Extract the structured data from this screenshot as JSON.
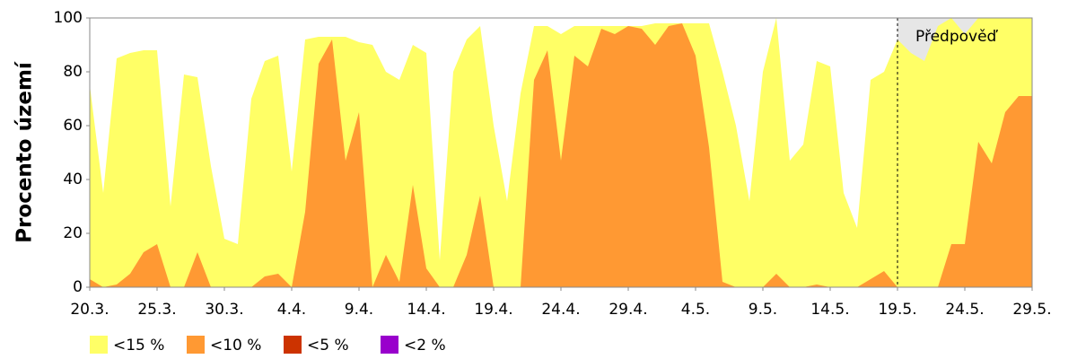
{
  "chart_data": {
    "type": "area",
    "ylabel": "Procento území",
    "annotation": "Předpověď",
    "forecast_start": "19.5.",
    "forecast_color": "#e6e6e6",
    "categories": [
      "20.3.",
      null,
      null,
      null,
      null,
      "25.3.",
      null,
      null,
      null,
      null,
      "30.3.",
      null,
      null,
      null,
      null,
      "4.4.",
      null,
      null,
      null,
      null,
      "9.4.",
      null,
      null,
      null,
      null,
      "14.4.",
      null,
      null,
      null,
      null,
      "19.4.",
      null,
      null,
      null,
      null,
      "24.4.",
      null,
      null,
      null,
      null,
      "29.4.",
      null,
      null,
      null,
      null,
      "4.5.",
      null,
      null,
      null,
      null,
      "9.5.",
      null,
      null,
      null,
      null,
      "14.5.",
      null,
      null,
      null,
      null,
      "19.5.",
      null,
      null,
      null,
      null,
      "24.5.",
      null,
      null,
      null,
      null,
      "29.5."
    ],
    "series": [
      {
        "name": "<15 %",
        "color": "#ffff66",
        "values": [
          75,
          35,
          85,
          87,
          88,
          88,
          30,
          79,
          78,
          45,
          18,
          16,
          70,
          84,
          86,
          43,
          92,
          93,
          93,
          93,
          91,
          90,
          80,
          77,
          90,
          87,
          10,
          80,
          92,
          97,
          60,
          32,
          72,
          97,
          97,
          94,
          97,
          97,
          97,
          97,
          97,
          97,
          98,
          98,
          98,
          98,
          98,
          80,
          60,
          32,
          80,
          100,
          47,
          53,
          84,
          82,
          35,
          22,
          77,
          80,
          92,
          87,
          84,
          97,
          100,
          94,
          100,
          100,
          100,
          100,
          100
        ]
      },
      {
        "name": "<10 %",
        "color": "#ff9933",
        "values": [
          3,
          0,
          1,
          5,
          13,
          16,
          0,
          0,
          13,
          0,
          0,
          0,
          0,
          4,
          5,
          0,
          28,
          83,
          92,
          47,
          65,
          0,
          12,
          2,
          38,
          7,
          0,
          0,
          12,
          34,
          0,
          0,
          0,
          77,
          88,
          47,
          86,
          82,
          96,
          94,
          97,
          96,
          90,
          97,
          98,
          86,
          52,
          2,
          0,
          0,
          0,
          5,
          0,
          0,
          1,
          0,
          0,
          0,
          3,
          6,
          0,
          0,
          0,
          0,
          16,
          16,
          54,
          46,
          65,
          71,
          71
        ]
      },
      {
        "name": "<5 %",
        "color": "#cc3300",
        "values": [
          0,
          0,
          0,
          0,
          0,
          0,
          0,
          0,
          0,
          0,
          0,
          0,
          0,
          0,
          0,
          0,
          0,
          0,
          0,
          0,
          0,
          0,
          0,
          0,
          0,
          0,
          0,
          0,
          0,
          0,
          0,
          0,
          0,
          0,
          0,
          0,
          0,
          0,
          0,
          0,
          0,
          0,
          0,
          0,
          0,
          0,
          0,
          0,
          0,
          0,
          0,
          0,
          0,
          0,
          0,
          0,
          0,
          0,
          0,
          0,
          0,
          0,
          0,
          0,
          0,
          0,
          0,
          0,
          0,
          0,
          0
        ]
      },
      {
        "name": "<2 %",
        "color": "#9900cc",
        "values": [
          0,
          0,
          0,
          0,
          0,
          0,
          0,
          0,
          0,
          0,
          0,
          0,
          0,
          0,
          0,
          0,
          0,
          0,
          0,
          0,
          0,
          0,
          0,
          0,
          0,
          0,
          0,
          0,
          0,
          0,
          0,
          0,
          0,
          0,
          0,
          0,
          0,
          0,
          0,
          0,
          0,
          0,
          0,
          0,
          0,
          0,
          0,
          0,
          0,
          0,
          0,
          0,
          0,
          0,
          0,
          0,
          0,
          0,
          0,
          0,
          0,
          0,
          0,
          0,
          0,
          0,
          0,
          0,
          0,
          0,
          0
        ]
      }
    ],
    "ylim": [
      0,
      100
    ],
    "yticks": [
      0,
      20,
      40,
      60,
      80,
      100
    ],
    "grid": false
  }
}
